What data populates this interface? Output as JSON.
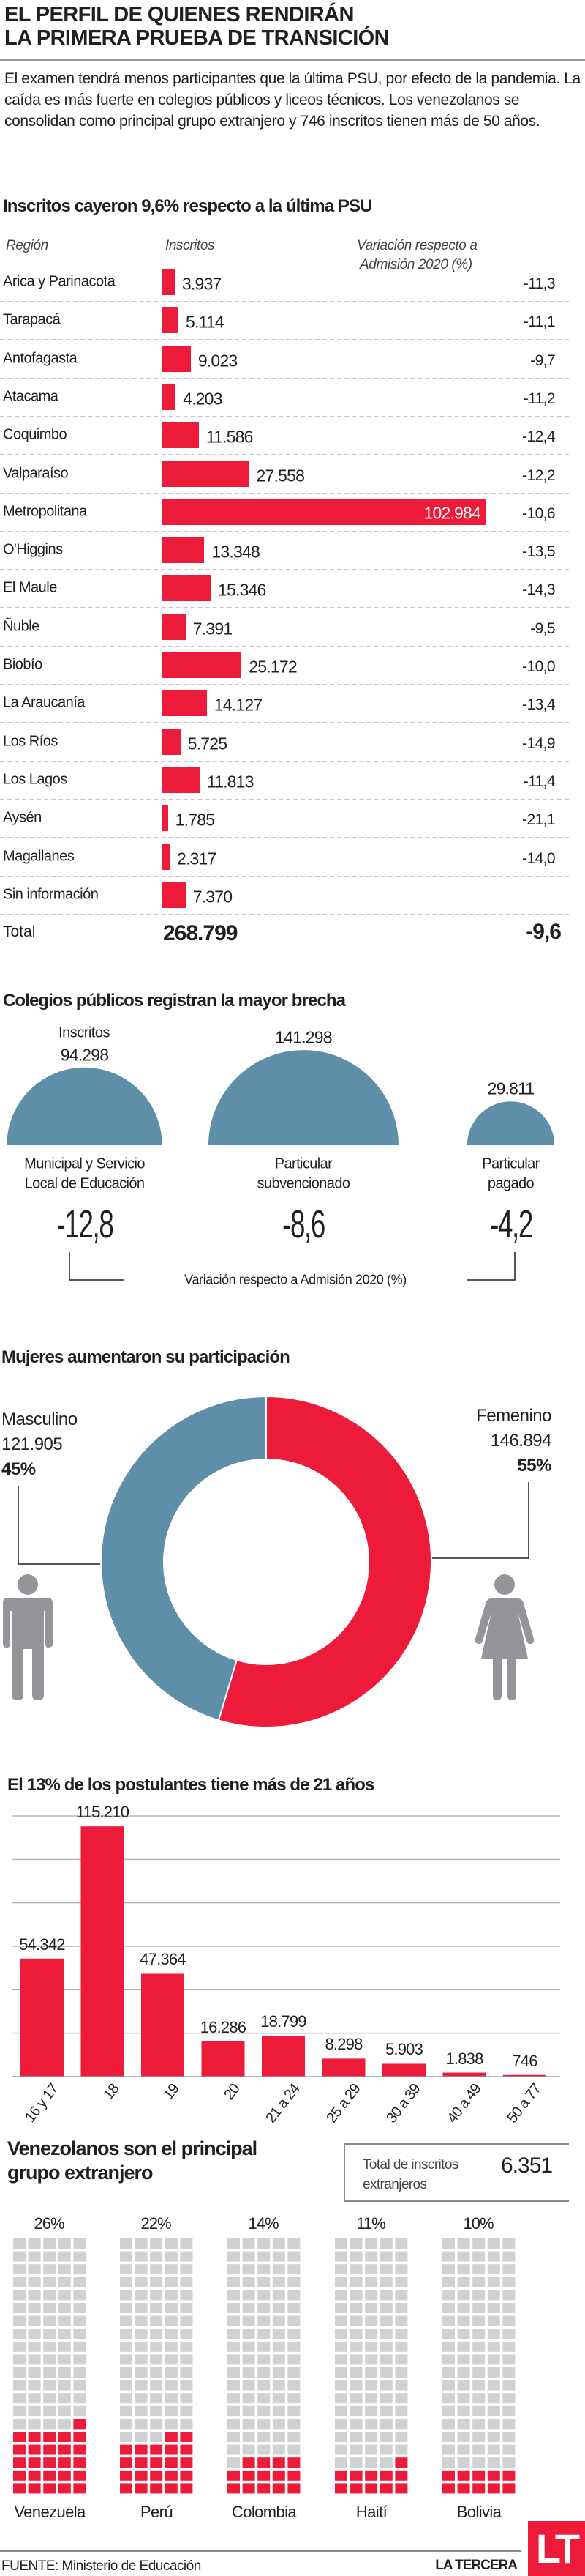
{
  "header": {
    "title_line1": "EL PERFIL DE QUIENES RENDIRÁN",
    "title_line2": "LA PRIMERA PRUEBA DE TRANSICIÓN",
    "intro": "El examen tendrá menos participantes que la última PSU, por efecto de la pandemia. La caída es más fuerte en colegios públicos y liceos técnicos. Los venezolanos se consolidan como principal grupo extranjero y 746 inscritos tienen más de 50 años."
  },
  "colors": {
    "red": "#ed1b3a",
    "blue": "#5f8fa8",
    "gray": "#d0d1d3",
    "icon_gray": "#939598"
  },
  "chart_data": [
    {
      "type": "bar",
      "orientation": "horizontal",
      "title": "Inscritos cayeron 9,6% respecto a la última PSU",
      "col_region": "Región",
      "col_inscritos": "Inscritos",
      "col_variacion_1": "Variación respecto a",
      "col_variacion_2": "Admisión 2020 (%)",
      "categories": [
        "Arica y Parinacota",
        "Tarapacá",
        "Antofagasta",
        "Atacama",
        "Coquimbo",
        "Valparaíso",
        "Metropolitana",
        "O'Higgins",
        "El Maule",
        "Ñuble",
        "Biobío",
        "La Araucanía",
        "Los Ríos",
        "Los Lagos",
        "Aysén",
        "Magallanes",
        "Sin información"
      ],
      "values": [
        3937,
        5114,
        9023,
        4203,
        11586,
        27558,
        102984,
        13348,
        15346,
        7391,
        25172,
        14127,
        5725,
        11813,
        1785,
        2317,
        7370
      ],
      "labels": [
        "3.937",
        "5.114",
        "9.023",
        "4.203",
        "11.586",
        "27.558",
        "102.984",
        "13.348",
        "15.346",
        "7.391",
        "25.172",
        "14.127",
        "5.725",
        "11.813",
        "1.785",
        "2.317",
        "7.370"
      ],
      "variation": [
        "-11,3",
        "-11,1",
        "-9,7",
        "-11,2",
        "-12,4",
        "-12,2",
        "-10,6",
        "-13,5",
        "-14,3",
        "-9,5",
        "-10,0",
        "-13,4",
        "-14,9",
        "-11,4",
        "-21,1",
        "-14,0",
        ""
      ],
      "total_label": "Total",
      "total_value": "268.799",
      "total_variation": "-9,6",
      "xlim": [
        0,
        102984
      ]
    },
    {
      "type": "area",
      "shape": "half-circle",
      "title": "Colegios públicos registran la mayor brecha",
      "inscritos_label": "Inscritos",
      "categories": [
        [
          "Municipal y Servicio",
          "Local de Educación"
        ],
        [
          "Particular",
          "subvencionado"
        ],
        [
          "Particular",
          "pagado"
        ]
      ],
      "values": [
        94298,
        141298,
        29811
      ],
      "labels": [
        "94.298",
        "141.298",
        "29.811"
      ],
      "variation": [
        "-12,8",
        "-8,6",
        "-4,2"
      ],
      "variation_caption": "Variación respecto a Admisión 2020 (%)"
    },
    {
      "type": "pie",
      "donut": true,
      "title": "Mujeres aumentaron su participación",
      "series": [
        {
          "name": "Femenino",
          "value": 146894,
          "label": "146.894",
          "percent": "55%"
        },
        {
          "name": "Masculino",
          "value": 121905,
          "label": "121.905",
          "percent": "45%"
        }
      ]
    },
    {
      "type": "bar",
      "title": "El 13% de los postulantes tiene más de 21 años",
      "categories": [
        "16 y 17",
        "18",
        "19",
        "20",
        "21 a 24",
        "25 a 29",
        "30 a 39",
        "40 a 49",
        "50 a 77"
      ],
      "values": [
        54342,
        115210,
        47364,
        16286,
        18799,
        8298,
        5903,
        1838,
        746
      ],
      "labels": [
        "54.342",
        "115.210",
        "47.364",
        "16.286",
        "18.799",
        "8.298",
        "5.903",
        "1.838",
        "746"
      ],
      "ylim": [
        0,
        120000
      ],
      "grid": true,
      "grid_step": 20000
    },
    {
      "type": "waffle",
      "title_line1": "Venezolanos son el principal",
      "title_line2": "grupo extranjero",
      "total_label_1": "Total de inscritos",
      "total_label_2": "extranjeros",
      "total_value": "6.351",
      "categories": [
        "Venezuela",
        "Perú",
        "Colombia",
        "Haití",
        "Bolivia"
      ],
      "values": [
        26,
        22,
        14,
        11,
        10
      ],
      "labels": [
        "26%",
        "22%",
        "14%",
        "11%",
        "10%"
      ],
      "cells": 100
    }
  ],
  "footer": {
    "source": "FUENTE: Ministerio de Educación",
    "brand": "LA TERCERA",
    "logo": "LT"
  }
}
